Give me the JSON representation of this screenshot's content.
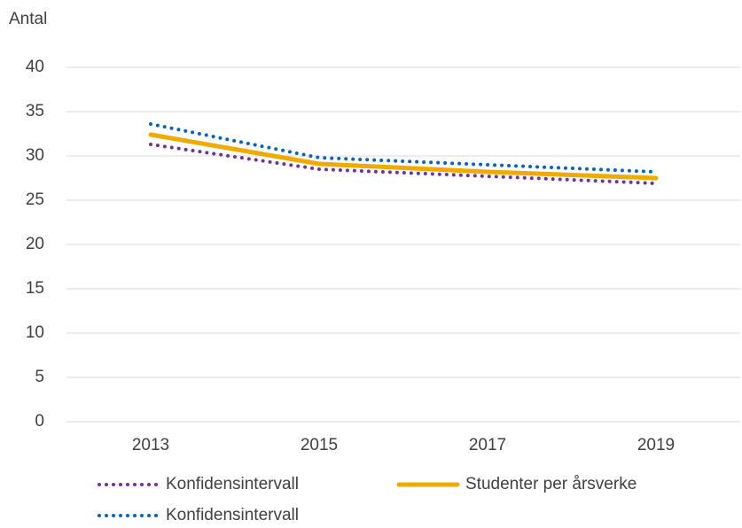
{
  "chart_data": {
    "type": "line",
    "ylabel": "Antal",
    "categories": [
      "2013",
      "2015",
      "2017",
      "2019"
    ],
    "series": [
      {
        "name": "Konfidensintervall",
        "color": "#7030a0",
        "style": "dotted",
        "values": [
          31.3,
          28.5,
          27.7,
          26.9
        ]
      },
      {
        "name": "Studenter per årsverke",
        "color": "#f0ab00",
        "style": "solid",
        "values": [
          32.4,
          29.1,
          28.2,
          27.5
        ]
      },
      {
        "name": "Konfidensintervall",
        "color": "#0563c1",
        "style": "dotted",
        "values": [
          33.6,
          29.8,
          29.0,
          28.2
        ]
      }
    ],
    "ylim": [
      0,
      40
    ],
    "yticks": [
      0,
      5,
      10,
      15,
      20,
      25,
      30,
      35,
      40
    ],
    "grid": true,
    "legend": "bottom"
  }
}
